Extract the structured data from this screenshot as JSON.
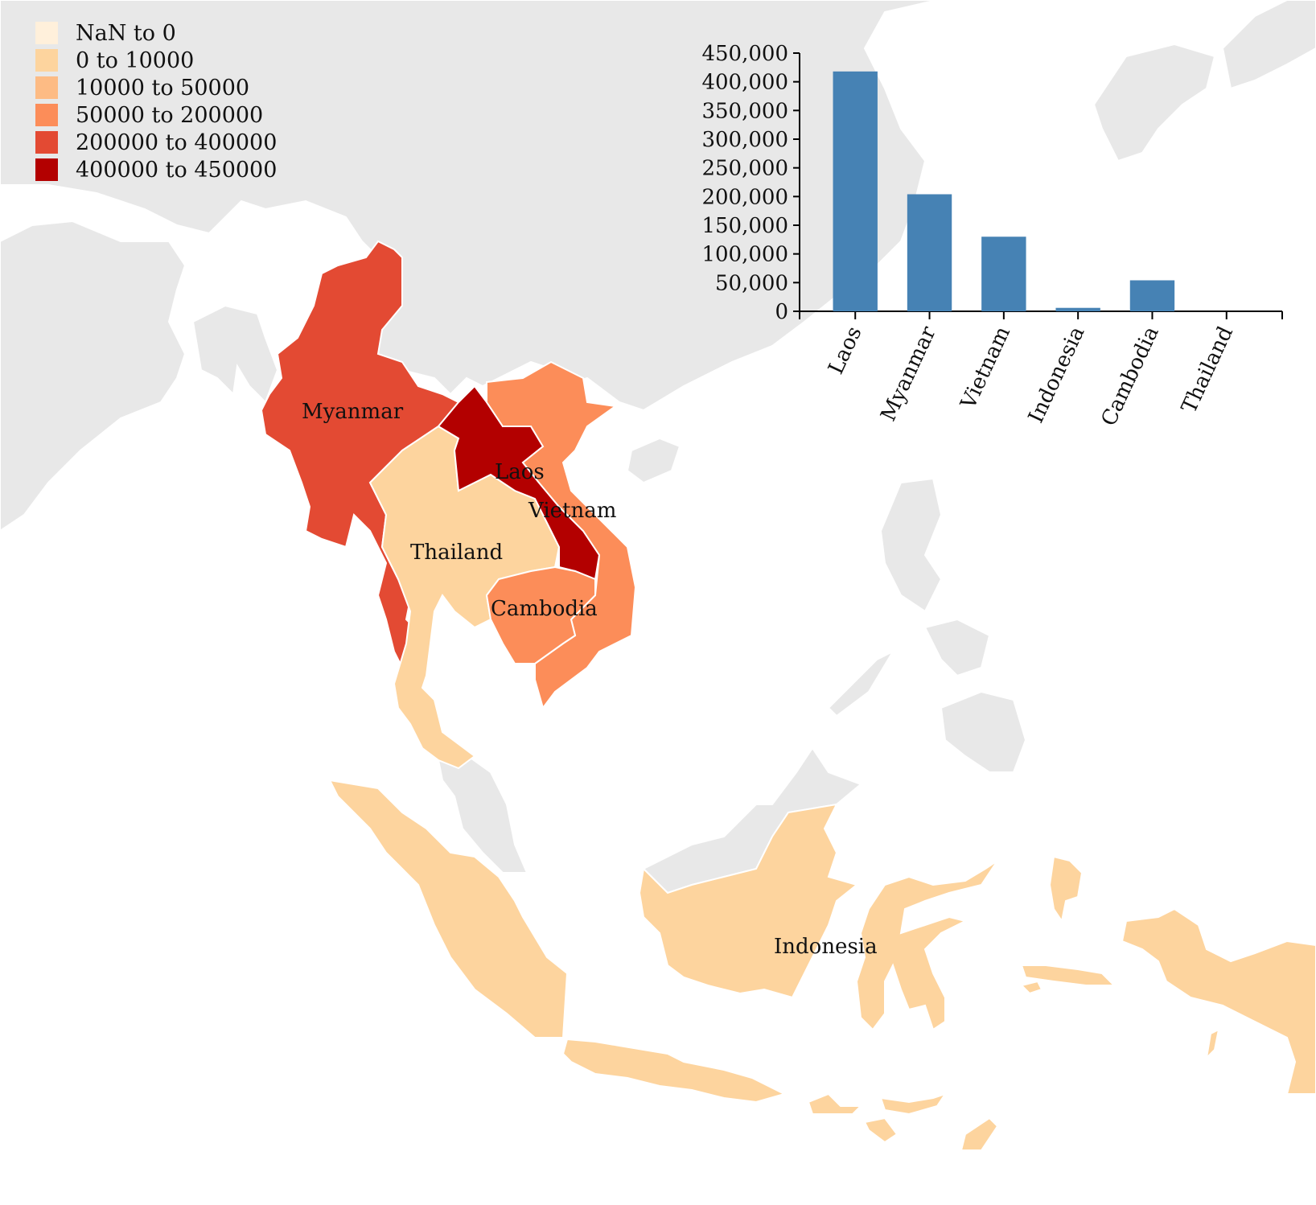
{
  "legend": {
    "items": [
      {
        "label": "NaN to 0",
        "color": "#fff0db"
      },
      {
        "label": "0 to 10000",
        "color": "#fdd49e"
      },
      {
        "label": "10000 to 50000",
        "color": "#fdbb84"
      },
      {
        "label": "50000 to 200000",
        "color": "#fc8d59"
      },
      {
        "label": "200000 to 400000",
        "color": "#e34a33"
      },
      {
        "label": "400000 to 450000",
        "color": "#b30000"
      }
    ]
  },
  "map": {
    "background_land_color": "#e8e8e8",
    "countries": [
      {
        "name": "Myanmar",
        "color": "#e34a33"
      },
      {
        "name": "Laos",
        "color": "#b30000"
      },
      {
        "name": "Vietnam",
        "color": "#fc8d59"
      },
      {
        "name": "Thailand",
        "color": "#fdd49e"
      },
      {
        "name": "Cambodia",
        "color": "#fc8d59"
      },
      {
        "name": "Indonesia",
        "color": "#fdd49e"
      }
    ]
  },
  "chart_data": {
    "type": "bar",
    "categories": [
      "Laos",
      "Myanmar",
      "Vietnam",
      "Indonesia",
      "Cambodia",
      "Thailand"
    ],
    "values": [
      418000,
      204000,
      130000,
      6000,
      54000,
      0
    ],
    "ylim": [
      0,
      450000
    ],
    "yticks": [
      0,
      50000,
      100000,
      150000,
      200000,
      250000,
      300000,
      350000,
      400000,
      450000
    ],
    "ytick_labels": [
      "0",
      "50,000",
      "100,000",
      "150,000",
      "200,000",
      "250,000",
      "300,000",
      "350,000",
      "400,000",
      "450,000"
    ],
    "bar_color": "#4682b4",
    "title": "",
    "xlabel": "",
    "ylabel": ""
  }
}
